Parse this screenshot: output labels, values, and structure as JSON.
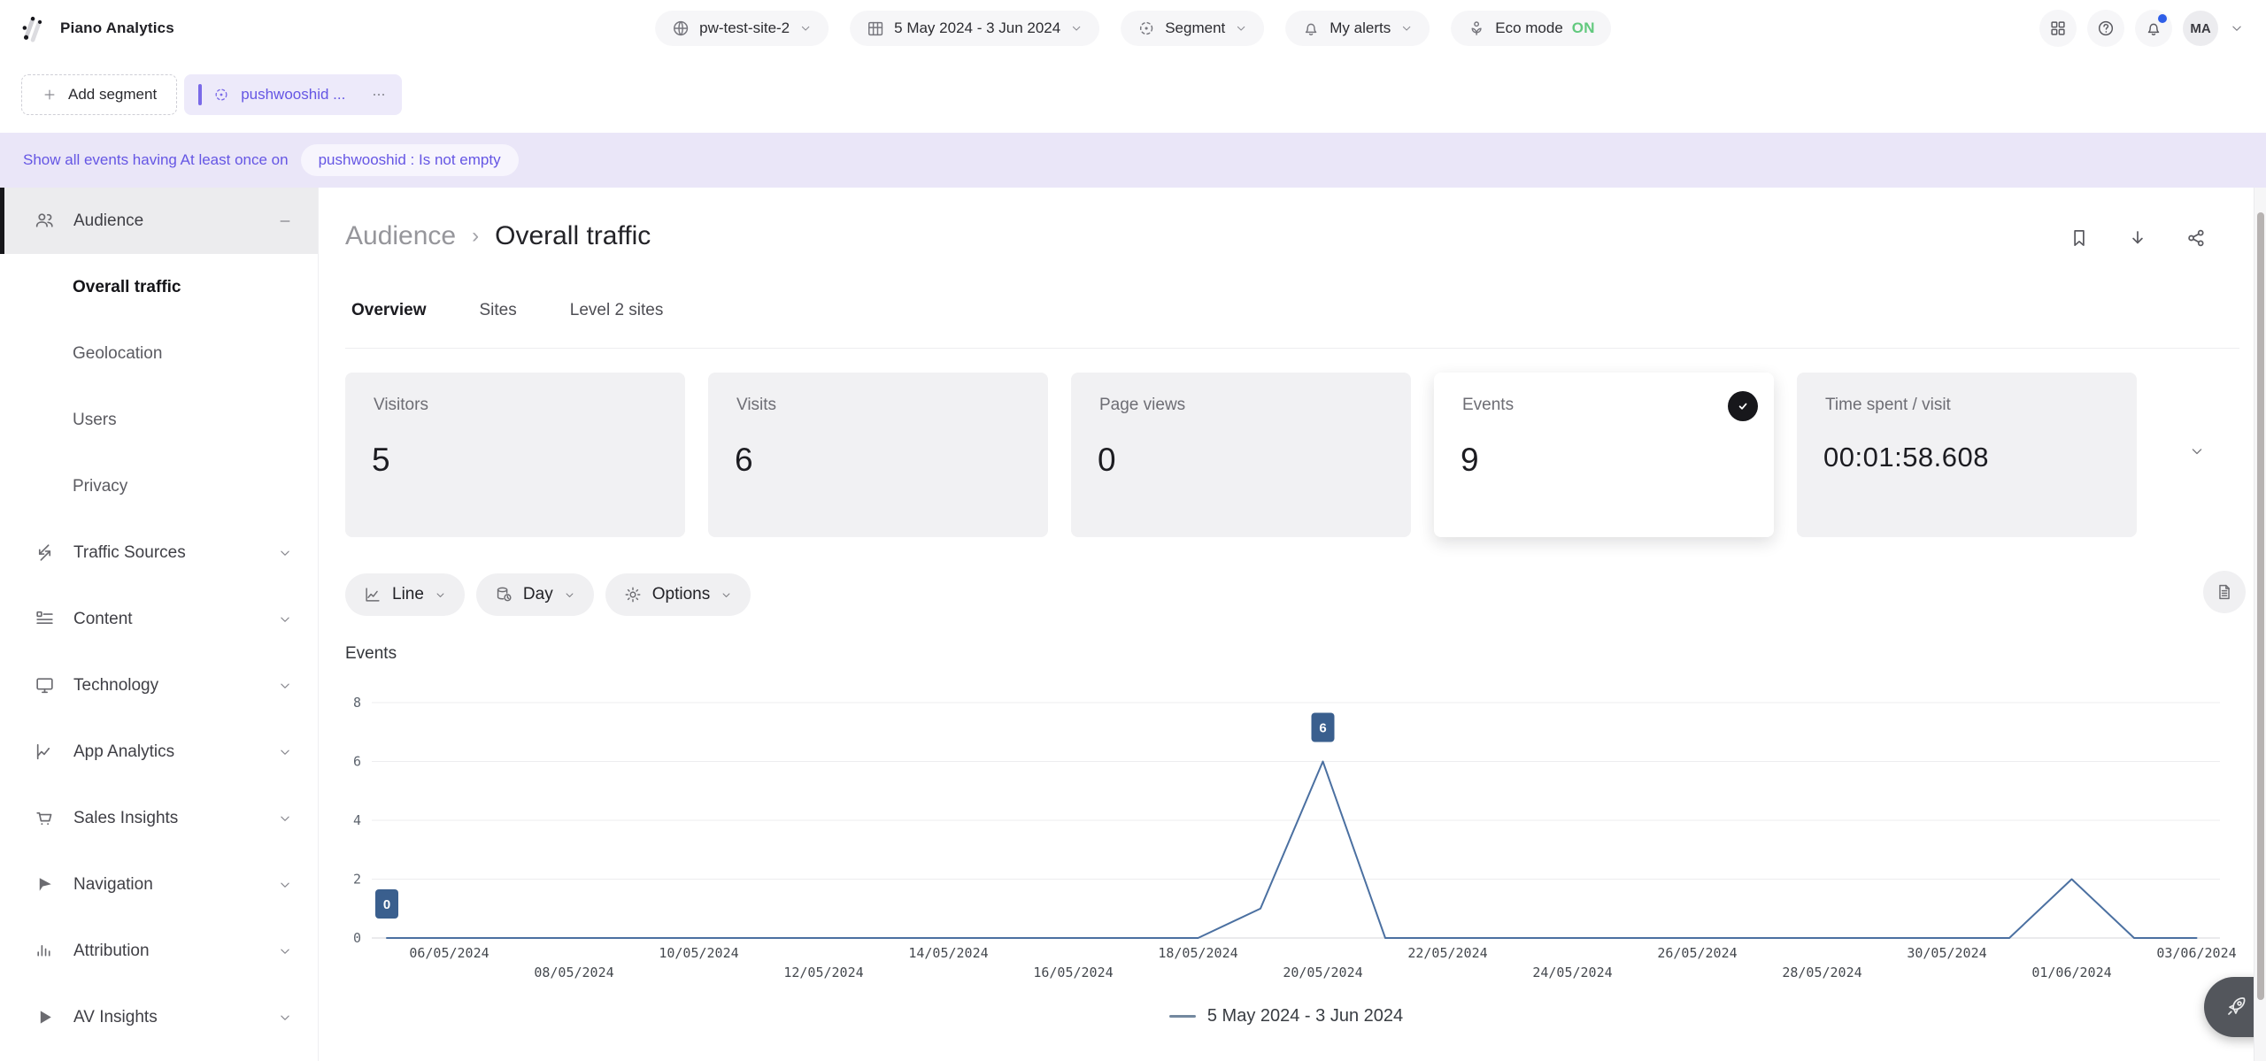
{
  "header": {
    "app_title": "Piano Analytics",
    "site": "pw-test-site-2",
    "date_range": "5 May 2024 - 3 Jun 2024",
    "segment": "Segment",
    "alerts": "My alerts",
    "eco_label": "Eco mode",
    "eco_status": "ON",
    "avatar": "MA",
    "right_icons": [
      "apps-grid-icon",
      "help-icon",
      "notifications-bell-icon",
      "account-avatar"
    ]
  },
  "segment_bar": {
    "add_label": "Add segment",
    "chip_label": "pushwooshid ..."
  },
  "filter_bar": {
    "text": "Show all events having At least once on",
    "chip": "pushwooshid : Is not empty"
  },
  "sidebar": {
    "sections": [
      {
        "label": "Audience",
        "icon": "users",
        "active": true,
        "expanded": true,
        "items": [
          {
            "label": "Overall traffic",
            "active": true
          },
          {
            "label": "Geolocation",
            "active": false
          },
          {
            "label": "Users",
            "active": false
          },
          {
            "label": "Privacy",
            "active": false
          }
        ]
      },
      {
        "label": "Traffic Sources",
        "icon": "traffic"
      },
      {
        "label": "Content",
        "icon": "content"
      },
      {
        "label": "Technology",
        "icon": "monitor"
      },
      {
        "label": "App Analytics",
        "icon": "appchart"
      },
      {
        "label": "Sales Insights",
        "icon": "cart"
      },
      {
        "label": "Navigation",
        "icon": "cursor"
      },
      {
        "label": "Attribution",
        "icon": "bars"
      },
      {
        "label": "AV Insights",
        "icon": "play"
      }
    ]
  },
  "main": {
    "breadcrumb": [
      "Audience",
      "Overall traffic"
    ],
    "tabs": [
      {
        "label": "Overview",
        "active": true
      },
      {
        "label": "Sites",
        "active": false
      },
      {
        "label": "Level 2 sites",
        "active": false
      }
    ],
    "kpis": [
      {
        "label": "Visitors",
        "value": "5",
        "selected": false
      },
      {
        "label": "Visits",
        "value": "6",
        "selected": false
      },
      {
        "label": "Page views",
        "value": "0",
        "selected": false
      },
      {
        "label": "Events",
        "value": "9",
        "selected": true
      },
      {
        "label": "Time spent / visit",
        "value": "00:01:58.608",
        "selected": false
      }
    ],
    "controls": [
      {
        "label": "Line",
        "icon": "linechart"
      },
      {
        "label": "Day",
        "icon": "db"
      },
      {
        "label": "Options",
        "icon": "gear"
      }
    ]
  },
  "chart_data": {
    "type": "line",
    "title": "Events",
    "xlabel": "",
    "ylabel": "Events",
    "ylim": [
      0,
      8
    ],
    "y_ticks": [
      0,
      2,
      4,
      6,
      8
    ],
    "grid": true,
    "legend_position": "bottom",
    "legend": "5 May 2024 - 3 Jun 2024",
    "x": [
      "05/05/2024",
      "06/05/2024",
      "07/05/2024",
      "08/05/2024",
      "09/05/2024",
      "10/05/2024",
      "11/05/2024",
      "12/05/2024",
      "13/05/2024",
      "14/05/2024",
      "15/05/2024",
      "16/05/2024",
      "17/05/2024",
      "18/05/2024",
      "19/05/2024",
      "20/05/2024",
      "21/05/2024",
      "22/05/2024",
      "23/05/2024",
      "24/05/2024",
      "25/05/2024",
      "26/05/2024",
      "27/05/2024",
      "28/05/2024",
      "29/05/2024",
      "30/05/2024",
      "31/05/2024",
      "01/06/2024",
      "02/06/2024",
      "03/06/2024"
    ],
    "values": [
      0,
      0,
      0,
      0,
      0,
      0,
      0,
      0,
      0,
      0,
      0,
      0,
      0,
      0,
      1,
      6,
      0,
      0,
      0,
      0,
      0,
      0,
      0,
      0,
      0,
      0,
      0,
      2,
      0,
      0
    ],
    "point_labels": [
      {
        "index": 0,
        "value": 0
      },
      {
        "index": 15,
        "value": 6
      }
    ],
    "x_ticks": [
      {
        "label": "06/05/2024",
        "index": 1,
        "row": 1
      },
      {
        "label": "08/05/2024",
        "index": 3,
        "row": 2
      },
      {
        "label": "10/05/2024",
        "index": 5,
        "row": 1
      },
      {
        "label": "12/05/2024",
        "index": 7,
        "row": 2
      },
      {
        "label": "14/05/2024",
        "index": 9,
        "row": 1
      },
      {
        "label": "16/05/2024",
        "index": 11,
        "row": 2
      },
      {
        "label": "18/05/2024",
        "index": 13,
        "row": 1
      },
      {
        "label": "20/05/2024",
        "index": 15,
        "row": 2
      },
      {
        "label": "22/05/2024",
        "index": 17,
        "row": 1
      },
      {
        "label": "24/05/2024",
        "index": 19,
        "row": 2
      },
      {
        "label": "26/05/2024",
        "index": 21,
        "row": 1
      },
      {
        "label": "28/05/2024",
        "index": 23,
        "row": 2
      },
      {
        "label": "30/05/2024",
        "index": 25,
        "row": 1
      },
      {
        "label": "01/06/2024",
        "index": 27,
        "row": 2
      },
      {
        "label": "03/06/2024",
        "index": 29,
        "row": 1
      }
    ],
    "line_color": "#4b70a1",
    "badge_color": "#3a5f8e"
  },
  "colors": {
    "accent_purple": "#6556e4",
    "purple_chip_bg": "#edeafa",
    "purple_bar": "#7a6ae8",
    "filter_bg": "#eae6f8",
    "filter_chip_bg": "#f7f5fd",
    "eco_green": "#62c97e",
    "notification_blue": "#2f5fe8"
  }
}
